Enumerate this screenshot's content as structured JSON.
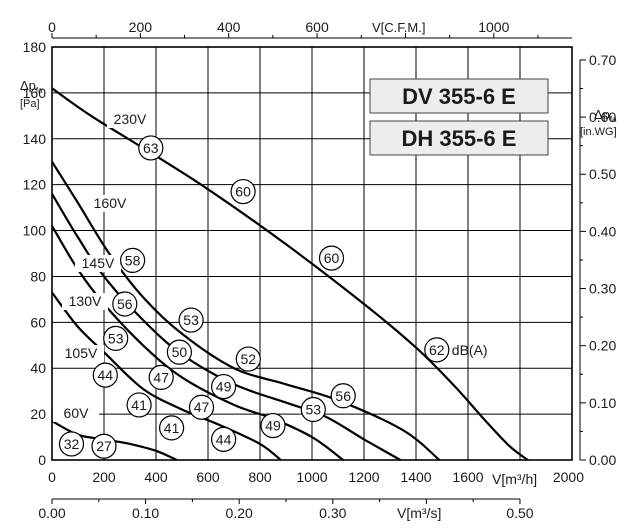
{
  "chart_data": {
    "type": "line",
    "models": [
      "DV 355-6 E",
      "DH 355-6 E"
    ],
    "x_bottom": {
      "unit_label": "V[m³/h]",
      "range": [
        0,
        2000
      ],
      "ticks": [
        "0",
        "200",
        "400",
        "600",
        "800",
        "1000",
        "1200",
        "1400",
        "1600",
        "2000"
      ]
    },
    "x_top": {
      "unit_label": "V[C.F.M.]",
      "range": [
        0,
        1177
      ],
      "ticks": [
        "0",
        "200",
        "400",
        "600",
        "1000"
      ]
    },
    "x_bottom2": {
      "unit_label": "V[m³/s]",
      "range": [
        0,
        0.5556
      ],
      "ticks": [
        "0.00",
        "0.10",
        "0.20",
        "0.30",
        "0.50"
      ]
    },
    "y_left": {
      "label_main": "Δp",
      "label_sub": "fa",
      "unit": "[Pa]",
      "range": [
        0,
        180
      ],
      "ticks": [
        "0",
        "20",
        "40",
        "60",
        "80",
        "100",
        "120",
        "140",
        "160",
        "180"
      ]
    },
    "y_right": {
      "label_main": "Δp",
      "label_sub": "fa",
      "unit": "[in.WG]",
      "range": [
        0,
        0.7226
      ],
      "ticks": [
        "0.00",
        "0.10",
        "0.20",
        "0.30",
        "0.40",
        "0.50",
        "0.60",
        "0.70"
      ]
    },
    "grid": true,
    "series": [
      {
        "name": "230V",
        "x": [
          0,
          150,
          350,
          600,
          900,
          1200,
          1400,
          1550,
          1660,
          1760,
          1830
        ],
        "y": [
          162,
          150,
          136,
          118,
          94,
          68,
          49,
          32,
          18,
          6,
          0
        ]
      },
      {
        "name": "160V",
        "x": [
          0,
          100,
          220,
          350,
          500,
          700,
          900,
          1100,
          1350,
          1490
        ],
        "y": [
          130,
          112,
          90,
          71,
          55,
          40,
          33,
          26,
          13,
          0
        ]
      },
      {
        "name": "145V",
        "x": [
          0,
          100,
          200,
          350,
          500,
          700,
          900,
          1050,
          1200,
          1340
        ],
        "y": [
          116,
          97,
          80,
          61,
          46,
          33,
          25,
          19,
          9,
          0
        ]
      },
      {
        "name": "130V",
        "x": [
          0,
          100,
          200,
          350,
          500,
          700,
          850,
          1000,
          1120
        ],
        "y": [
          102,
          83,
          68,
          50,
          36,
          24,
          18,
          10,
          0
        ]
      },
      {
        "name": "105V",
        "x": [
          0,
          100,
          200,
          350,
          500,
          650,
          800,
          880
        ],
        "y": [
          73,
          58,
          47,
          31,
          22,
          15,
          7,
          0
        ]
      },
      {
        "name": "60V",
        "x": [
          0,
          100,
          200,
          300,
          400,
          480
        ],
        "y": [
          17,
          11,
          9,
          7,
          4,
          0
        ]
      }
    ],
    "annotations": {
      "voltage_labels": [
        "230V",
        "160V",
        "145V",
        "130V",
        "105V",
        "60V"
      ],
      "unit_note": "dB(A)",
      "db_values": [
        {
          "value": "63",
          "x": 380,
          "y": 136
        },
        {
          "value": "60",
          "x": 735,
          "y": 117
        },
        {
          "value": "60",
          "x": 1075,
          "y": 88
        },
        {
          "value": "62",
          "x": 1480,
          "y": 48
        },
        {
          "value": "58",
          "x": 310,
          "y": 87
        },
        {
          "value": "56",
          "x": 280,
          "y": 68
        },
        {
          "value": "53",
          "x": 535,
          "y": 61
        },
        {
          "value": "53",
          "x": 245,
          "y": 53
        },
        {
          "value": "50",
          "x": 490,
          "y": 47
        },
        {
          "value": "52",
          "x": 755,
          "y": 44
        },
        {
          "value": "44",
          "x": 205,
          "y": 37
        },
        {
          "value": "47",
          "x": 420,
          "y": 36
        },
        {
          "value": "49",
          "x": 660,
          "y": 32
        },
        {
          "value": "56",
          "x": 1120,
          "y": 28
        },
        {
          "value": "41",
          "x": 335,
          "y": 24
        },
        {
          "value": "47",
          "x": 575,
          "y": 23
        },
        {
          "value": "53",
          "x": 1005,
          "y": 22
        },
        {
          "value": "41",
          "x": 460,
          "y": 14
        },
        {
          "value": "49",
          "x": 850,
          "y": 15
        },
        {
          "value": "44",
          "x": 660,
          "y": 9
        },
        {
          "value": "32",
          "x": 75,
          "y": 7
        },
        {
          "value": "27",
          "x": 200,
          "y": 6
        }
      ]
    }
  }
}
